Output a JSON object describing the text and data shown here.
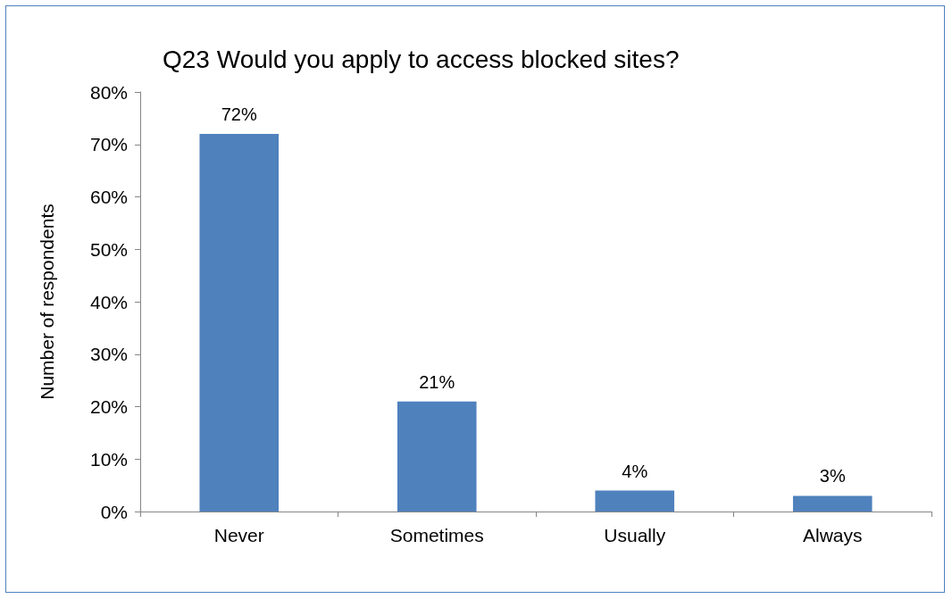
{
  "chart_data": {
    "type": "bar",
    "title": "Q23 Would you apply to access blocked sites?",
    "ylabel": "Number of respondents",
    "categories": [
      "Never",
      "Sometimes",
      "Usually",
      "Always"
    ],
    "values": [
      72,
      21,
      4,
      3
    ],
    "value_labels": [
      "72%",
      "21%",
      "4%",
      "3%"
    ],
    "color": "#4f81bd",
    "ylim": [
      0,
      80
    ],
    "yticks": [
      {
        "value": 0,
        "label": "0%"
      },
      {
        "value": 10,
        "label": "10%"
      },
      {
        "value": 20,
        "label": "20%"
      },
      {
        "value": 30,
        "label": "30%"
      },
      {
        "value": 40,
        "label": "40%"
      },
      {
        "value": 50,
        "label": "50%"
      },
      {
        "value": 60,
        "label": "60%"
      },
      {
        "value": 70,
        "label": "70%"
      },
      {
        "value": 80,
        "label": "80%"
      }
    ],
    "grid": false
  }
}
